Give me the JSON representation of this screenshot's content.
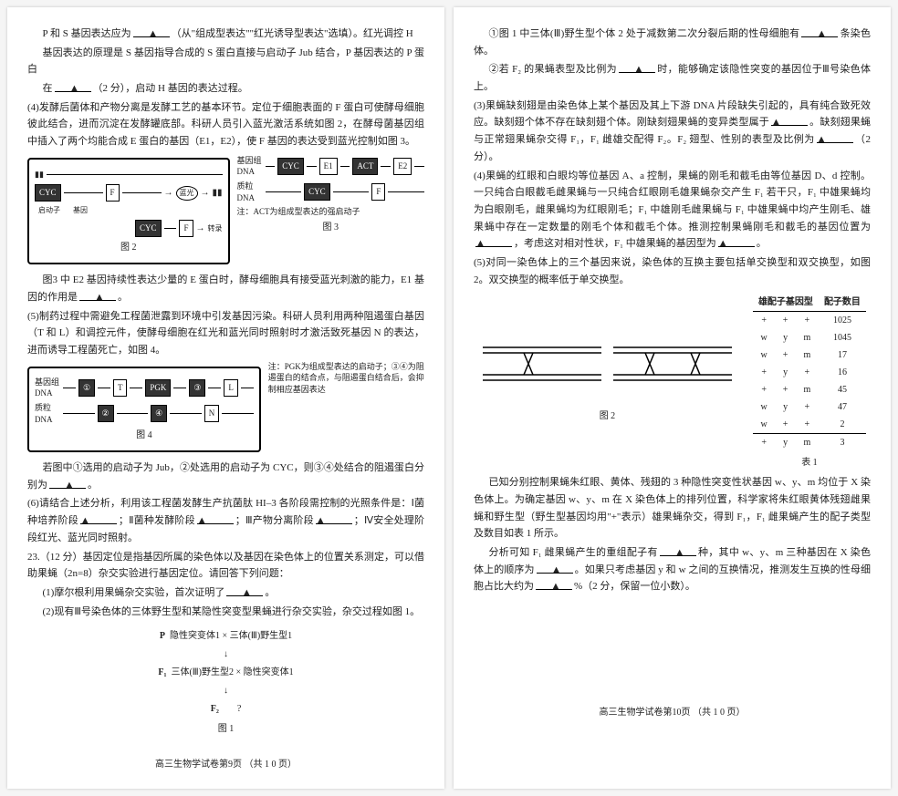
{
  "p1": {
    "l1": "P 和 S 基因表达应为",
    "l1b": "（从\"组成型表达\"\"红光诱导型表达\"选填）。红光调控 H",
    "l2": "基因表达的原理是 S 基因指导合成的 S 蛋白直接与启动子 Jub 结合，P 基因表达的 P 蛋白",
    "l3": "在",
    "l3b": "（2 分），启动 H 基因的表达过程。",
    "q4": "(4)发酵后菌体和产物分离是发酵工艺的基本环节。定位于细胞表面的 F 蛋白可使酵母细胞彼此结合，进而沉淀在发酵罐底部。科研人员引入蓝光激活系统如图 2，在酵母菌基因组中插入了两个均能合成 E 蛋白的基因（E1，E2），使 F 基因的表达受到蓝光控制如图 3。",
    "fig2": "图 2",
    "fig3": "图 3",
    "actnote": "注：ACT为组成型表达的强启动子",
    "labels": {
      "cyc": "CYC",
      "f": "F",
      "e1": "E1",
      "e2": "E2",
      "act": "ACT",
      "qdz": "启动子",
      "jy": "基因",
      "bl": "蓝光",
      "zh": "转录",
      "jyzDNA": "基因组\nDNA",
      "zlDNA": "质粒\nDNA"
    },
    "l4": "图3 中 E2 基因持续性表达少量的 E 蛋白时，酵母细胞具有接受蓝光刺激的能力，E1 基因的作用是",
    "q5": "(5)制药过程中需避免工程菌泄露到环境中引发基因污染。科研人员利用两种阻遏蛋白基因（T 和 L）和调控元件，使酵母细胞在红光和蓝光同时照射时才激活致死基因 N 的表达，进而诱导工程菌死亡，如图 4。",
    "fig4": "图 4",
    "note4": "注：PGK为组成型表达的启动子；③④为阻遏蛋白的结合点，与阻遏蛋白结合后，会抑制相应基因表达",
    "boxl": {
      "t": "T",
      "pgk": "PGK",
      "l": "L",
      "n": "N",
      "c1": "①",
      "c2": "②",
      "c3": "③",
      "c4": "④"
    },
    "l5": "若图中①选用的启动子为 Jub，②处选用的启动子为 CYC，则③④处结合的阻遏蛋白分别为",
    "q6": "(6)请结合上述分析，利用该工程菌发酵生产抗菌肽 HI–3 各阶段需控制的光照条件是：Ⅰ菌种培养阶段",
    "q6b": "；Ⅱ菌种发酵阶段",
    "q6c": "；Ⅲ产物分离阶段",
    "q6d": "；Ⅳ安全处理阶段红光、蓝光同时照射。",
    "q23": "23.（12 分）基因定位是指基因所属的染色体以及基因在染色体上的位置关系测定，可以借助果蝇（2n=8）杂交实验进行基因定位。请回答下列问题：",
    "q23_1": "(1)摩尔根利用果蝇杂交实验，首次证明了",
    "q23_2": "(2)现有Ⅲ号染色体的三体野生型和某隐性突变型果蝇进行杂交实验，杂交过程如图 1。",
    "cross": {
      "p": "P",
      "pl": "隐性突变体1  ×  三体(Ⅲ)野生型1",
      "f1": "F₁",
      "f1l": "三体(Ⅲ)野生型2 × 隐性突变体1",
      "f2": "F₂",
      "q": "?",
      "cap": "图 1"
    },
    "foot": "高三生物学试卷第9页  （共 1 0 页）"
  },
  "p2": {
    "q1": "①图 1 中三体(Ⅲ)野生型个体 2 处于减数第二次分裂后期的性母细胞有",
    "q1b": "条染色体。",
    "q2": "②若 F₂ 的果蝇表型及比例为",
    "q2b": "时，能够确定该隐性突变的基因位于Ⅲ号染色体上。",
    "q3": "(3)果蝇缺刻翅是由染色体上某个基因及其上下游 DNA 片段缺失引起的，具有纯合致死效应。缺刻翅个体不存在缺刻翅个体。刚缺刻翅果蝇的变异类型属于",
    "q3b": "。缺刻翅果蝇与正常翅果蝇杂交得 F₁，F₁ 雌雄交配得 F₂。F₂ 翅型、性别的表型及比例为",
    "q3c": "（2 分）。",
    "q4": "(4)果蝇的红眼和白眼均等位基因 A、a 控制，果蝇的刚毛和截毛由等位基因 D、d 控制。一只纯合白眼截毛雌果蝇与一只纯合红眼刚毛雄果蝇杂交产生 F₁ 若干只，F₁ 中雄果蝇均为白眼刚毛，雌果蝇均为红眼刚毛；F₁ 中雄刚毛雌果蝇与 F₁ 中雄果蝇中均产生刚毛、雄果蝇中存在一定数量的刚毛个体和截毛个体。推测控制果蝇刚毛和截毛的基因位置为",
    "q4b": "，考虑这对相对性状，F₁ 中雄果蝇的基因型为",
    "q5": "(5)对同一染色体上的三个基因来说，染色体的互换主要包括单交换型和双交换型，如图 2。双交换型的概率低于单交换型。",
    "fig2": "图 2",
    "tab1": "表 1",
    "tblh1": "雄配子基因型",
    "tblh2": "配子数目",
    "rows": [
      [
        "+",
        "+",
        "+",
        "1025"
      ],
      [
        "w",
        "y",
        "m",
        "1045"
      ],
      [
        "w",
        "+",
        "m",
        "17"
      ],
      [
        "+",
        "y",
        "+",
        "16"
      ],
      [
        "+",
        "+",
        "m",
        "45"
      ],
      [
        "w",
        "y",
        "+",
        "47"
      ],
      [
        "w",
        "+",
        "+",
        "2"
      ],
      [
        "+",
        "y",
        "m",
        "3"
      ]
    ],
    "l6": "已知分别控制果蝇朱红眼、黄体、残翅的 3 种隐性突变性状基因 w、y、m 均位于 X 染色体上。为确定基因 w、y、m 在 X 染色体上的排列位置，科学家将朱红眼黄体残翅雌果蝇和野生型（野生型基因均用\"+\"表示）雄果蝇杂交，得到 F₁，F₁ 雌果蝇产生的配子类型及数目如表 1 所示。",
    "l7": "分析可知 F₁ 雌果蝇产生的重组配子有",
    "l7b": "种，其中 w、y、m 三种基因在 X 染色体上的顺序为",
    "l7c": "。如果只考虑基因 y 和 w 之间的互换情况，推测发生互换的性母细胞占比大约为",
    "l7d": "%（2 分，保留一位小数）。",
    "foot": "高三生物学试卷第10页  （共 1 0 页）"
  }
}
